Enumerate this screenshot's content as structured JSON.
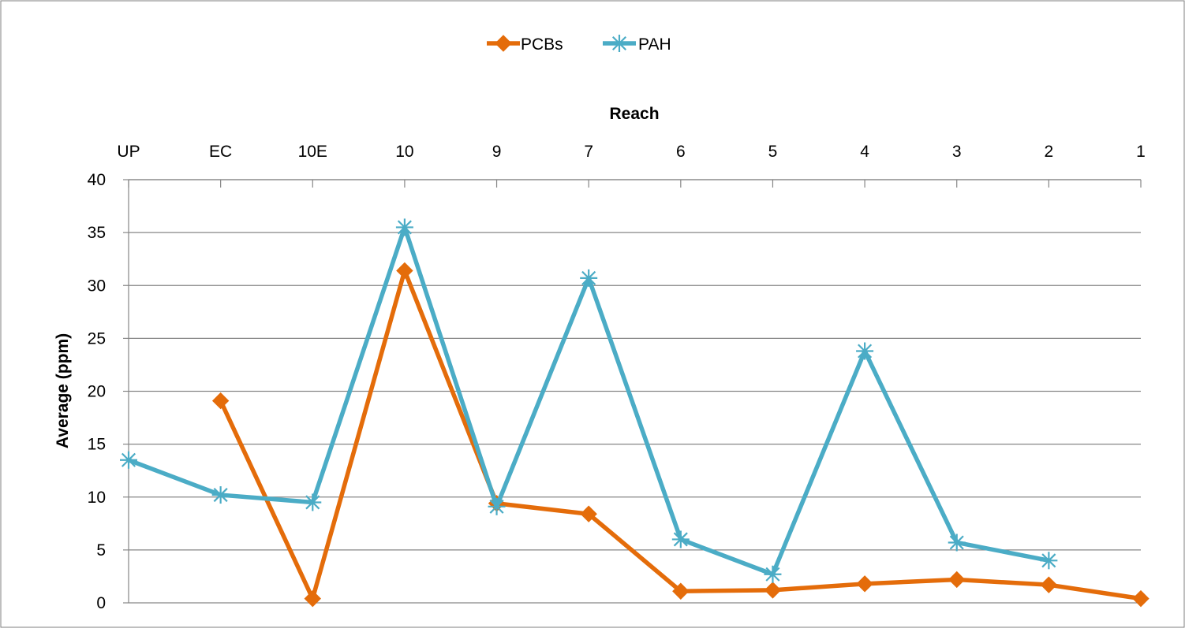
{
  "chart_data": {
    "type": "line",
    "title": "",
    "xlabel": "Reach",
    "ylabel": "Average (ppm)",
    "categories": [
      "UP",
      "EC",
      "10E",
      "10",
      "9",
      "7",
      "6",
      "5",
      "4",
      "3",
      "2",
      "1"
    ],
    "ylim": [
      0,
      40
    ],
    "yticks": [
      "0",
      "5",
      "10",
      "15",
      "20",
      "25",
      "30",
      "35",
      "40"
    ],
    "grid": true,
    "legend_position": "top",
    "series": [
      {
        "name": "PCBs",
        "color": "#E46C0A",
        "marker": "diamond",
        "values": [
          null,
          19.1,
          0.4,
          31.4,
          9.4,
          8.4,
          1.1,
          1.2,
          1.8,
          2.2,
          1.7,
          0.4
        ]
      },
      {
        "name": "PAH",
        "color": "#4BACC6",
        "marker": "asterisk",
        "values": [
          13.5,
          10.2,
          9.5,
          35.5,
          9.1,
          30.7,
          6.0,
          2.7,
          23.8,
          5.7,
          4.0,
          null
        ]
      }
    ]
  }
}
